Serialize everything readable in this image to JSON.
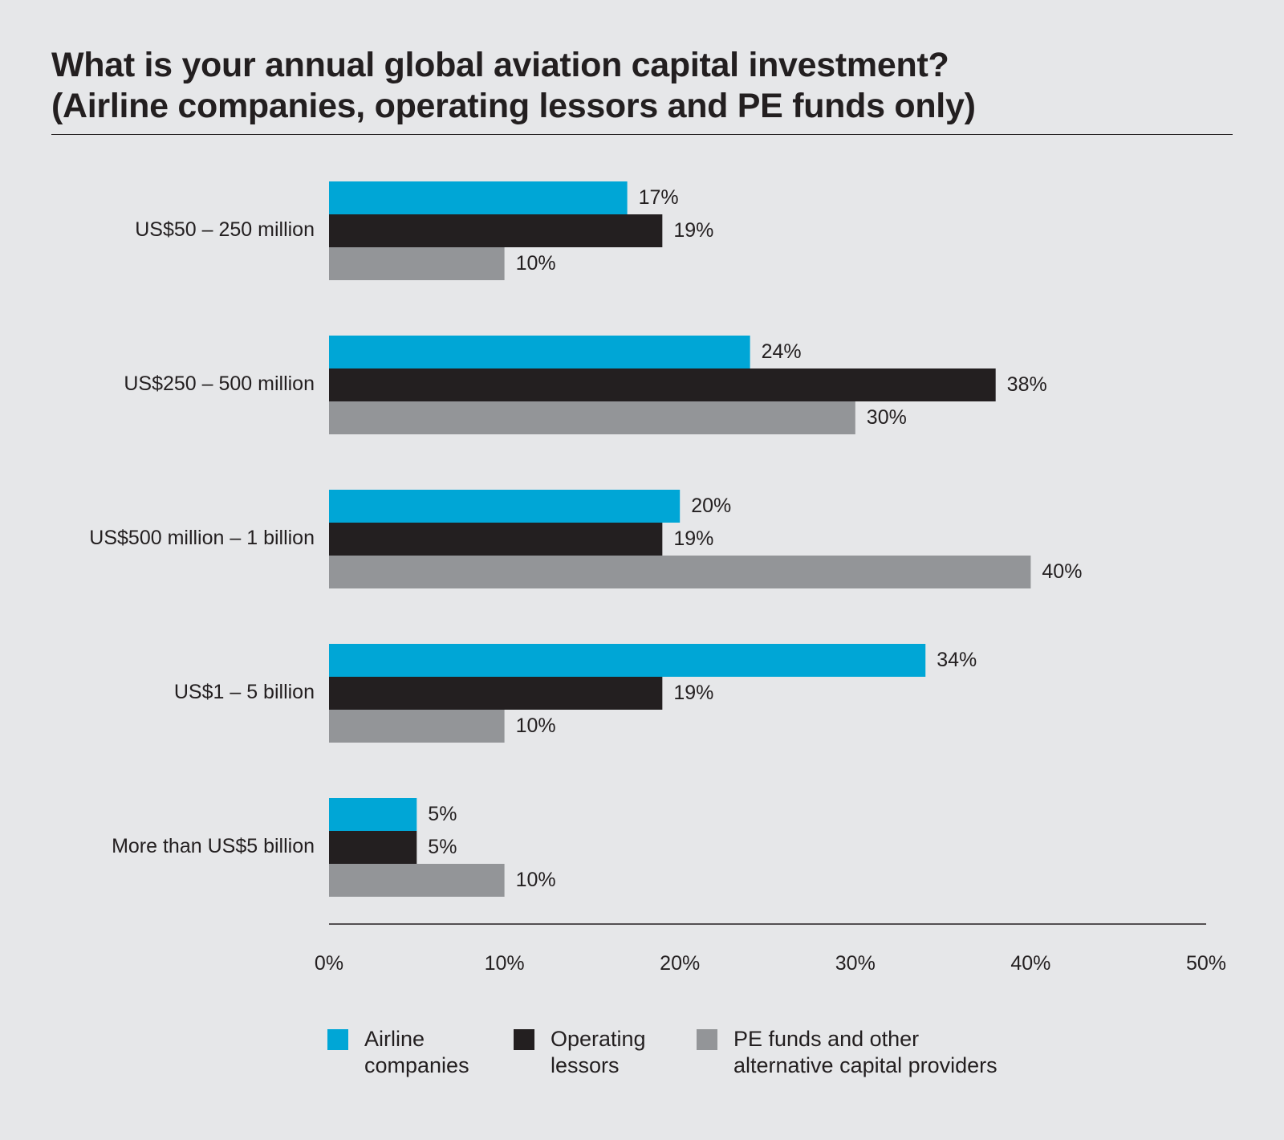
{
  "chart_data": {
    "type": "bar",
    "orientation": "horizontal",
    "title": [
      "What is your annual global aviation capital investment?",
      "(Airline companies, operating lessors and PE funds only)"
    ],
    "categories": [
      "US$50 – 250 million",
      "US$250 – 500 million",
      "US$500 million – 1 billion",
      "US$1 – 5 billion",
      "More than US$5 billion"
    ],
    "series": [
      {
        "name": [
          "Airline",
          "companies"
        ],
        "color": "#00a6d6",
        "values": [
          17,
          24,
          20,
          34,
          5
        ],
        "labels": [
          "17%",
          "24%",
          "20%",
          "34%",
          "5%"
        ]
      },
      {
        "name": [
          "Operating",
          "lessors"
        ],
        "color": "#231f20",
        "values": [
          19,
          38,
          19,
          19,
          5
        ],
        "labels": [
          "19%",
          "38%",
          "19%",
          "19%",
          "5%"
        ]
      },
      {
        "name": [
          "PE funds and other",
          "alternative capital providers"
        ],
        "color": "#939598",
        "values": [
          10,
          30,
          40,
          10,
          10
        ],
        "labels": [
          "10%",
          "30%",
          "40%",
          "10%",
          "10%"
        ]
      }
    ],
    "xlim": [
      0,
      50
    ],
    "xticks": [
      0,
      10,
      20,
      30,
      40,
      50
    ],
    "xtick_labels": [
      "0%",
      "10%",
      "20%",
      "30%",
      "40%",
      "50%"
    ],
    "xlabel": "",
    "ylabel": "",
    "grid": false,
    "legend_position": "bottom"
  }
}
